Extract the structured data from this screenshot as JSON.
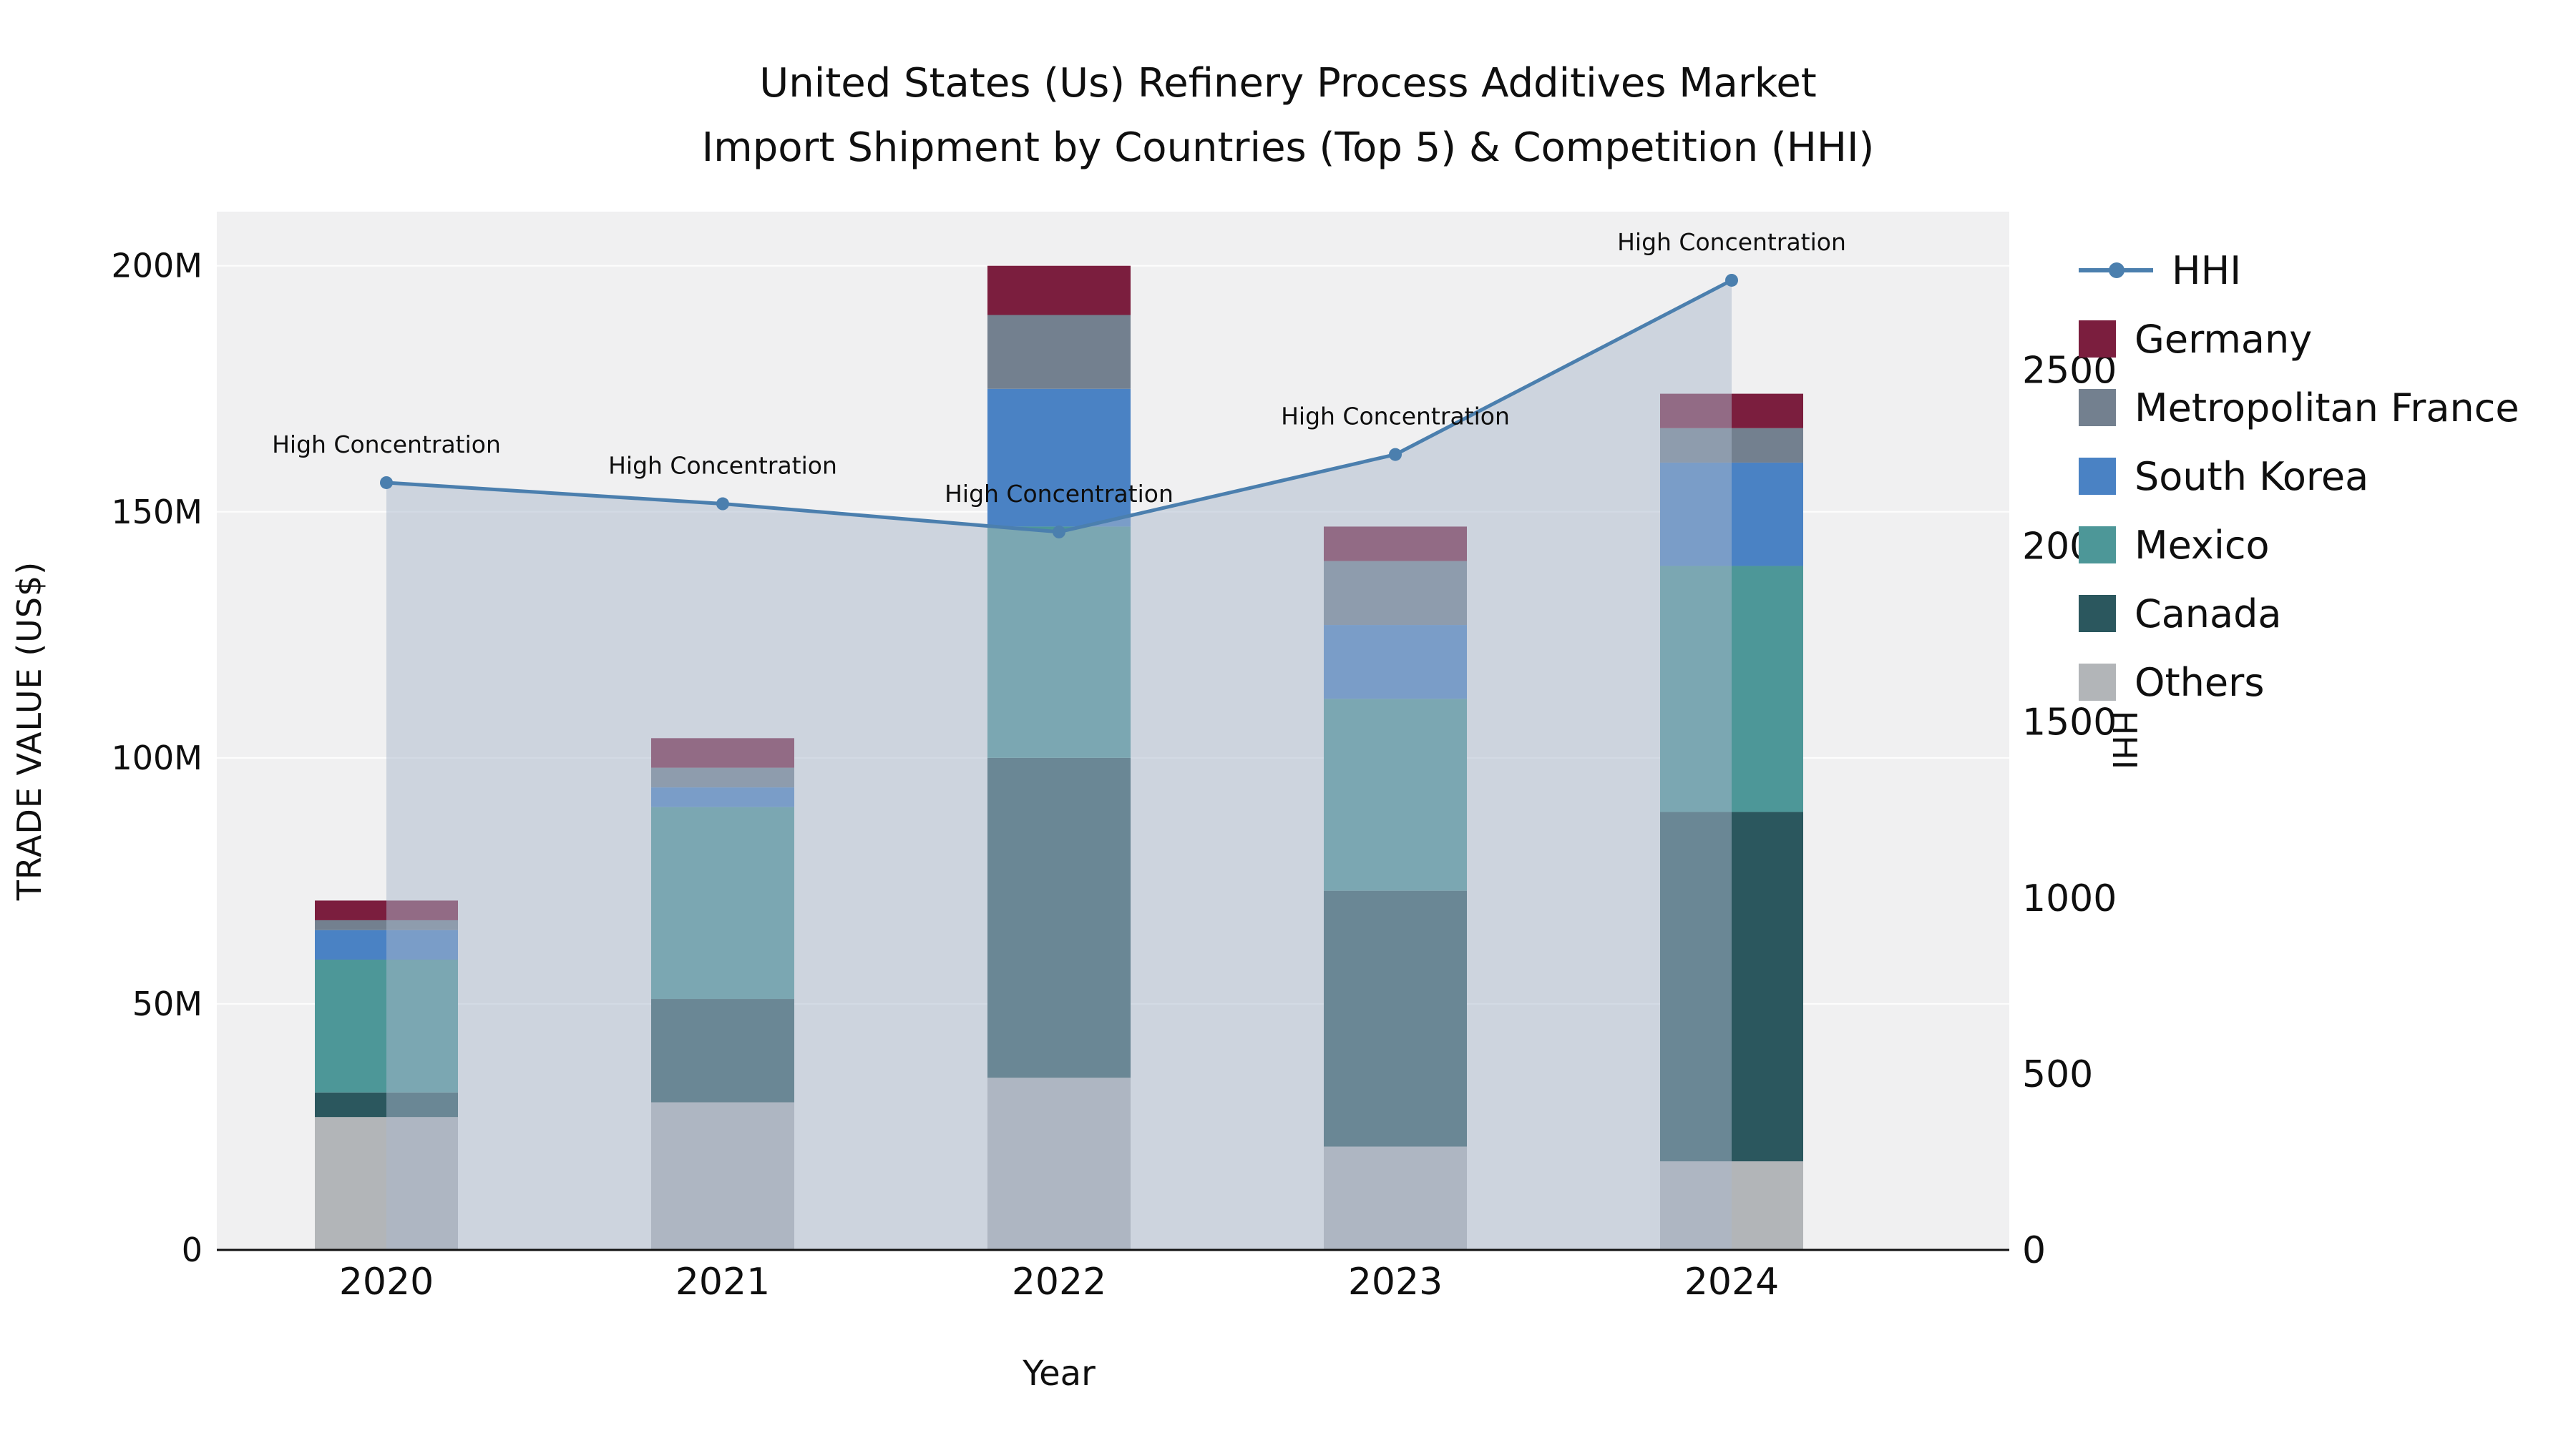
{
  "title": {
    "line1": "United States (Us) Refinery Process Additives Market",
    "line2": "Import Shipment by Countries (Top 5) & Competition (HHI)"
  },
  "axes": {
    "x_label": "Year",
    "y_left_label": "TRADE VALUE (US$)",
    "y_right_label": "HHI"
  },
  "annotation_text": "High Concentration",
  "legend": [
    {
      "label": "HHI",
      "type": "line",
      "color": "#4b7fae"
    },
    {
      "label": "Germany",
      "type": "swatch",
      "color": "#7b1e3e"
    },
    {
      "label": "Metropolitan France",
      "type": "swatch",
      "color": "#73808f"
    },
    {
      "label": "South Korea",
      "type": "swatch",
      "color": "#4a82c4"
    },
    {
      "label": "Mexico",
      "type": "swatch",
      "color": "#4d9798"
    },
    {
      "label": "Canada",
      "type": "swatch",
      "color": "#2b575e"
    },
    {
      "label": "Others",
      "type": "swatch",
      "color": "#b2b5b8"
    }
  ],
  "chart_data": {
    "type": "bar",
    "subtype": "stacked-bars-with-hhi-line-and-area",
    "title": "United States (Us) Refinery Process Additives Market Import Shipment by Countries (Top 5) & Competition (HHI)",
    "xlabel": "Year",
    "ylabel": "TRADE VALUE (US$)",
    "ylabel_right": "HHI",
    "unit_left": "millions US$",
    "categories": [
      "2020",
      "2021",
      "2022",
      "2023",
      "2024"
    ],
    "series": [
      {
        "name": "Others",
        "color": "#b2b5b8",
        "values": [
          27,
          30,
          35,
          21,
          18
        ]
      },
      {
        "name": "Canada",
        "color": "#2b575e",
        "values": [
          5,
          21,
          65,
          52,
          71
        ]
      },
      {
        "name": "Mexico",
        "color": "#4d9798",
        "values": [
          27,
          39,
          47,
          39,
          50
        ]
      },
      {
        "name": "South Korea",
        "color": "#4a82c4",
        "values": [
          6,
          4,
          28,
          15,
          21
        ]
      },
      {
        "name": "Metropolitan France",
        "color": "#73808f",
        "values": [
          2,
          4,
          15,
          13,
          7
        ]
      },
      {
        "name": "Germany",
        "color": "#7b1e3e",
        "values": [
          4,
          6,
          10,
          7,
          7
        ]
      }
    ],
    "bar_totals_millions": [
      71,
      104,
      200,
      147,
      174
    ],
    "hhi": {
      "name": "HHI",
      "color": "#4b7fae",
      "area_fill": "rgba(170,184,203,0.5)",
      "values": [
        2180,
        2120,
        2040,
        2260,
        2755
      ],
      "annotations": [
        "High Concentration",
        "High Concentration",
        "High Concentration",
        "High Concentration",
        "High Concentration"
      ]
    },
    "ylim_left": [
      0,
      211
    ],
    "ylim_right": [
      0,
      2950
    ],
    "y_left_ticks": [
      {
        "value": 0,
        "label": "0"
      },
      {
        "value": 50,
        "label": "50M"
      },
      {
        "value": 100,
        "label": "100M"
      },
      {
        "value": 150,
        "label": "150M"
      },
      {
        "value": 200,
        "label": "200M"
      }
    ],
    "y_right_ticks": [
      {
        "value": 0,
        "label": "0"
      },
      {
        "value": 500,
        "label": "500"
      },
      {
        "value": 1000,
        "label": "1000"
      },
      {
        "value": 1500,
        "label": "1500"
      },
      {
        "value": 2000,
        "label": "2000"
      },
      {
        "value": 2500,
        "label": "2500"
      }
    ],
    "grid": true,
    "legend_position": "right",
    "plot_background": "#f0f0f1"
  }
}
